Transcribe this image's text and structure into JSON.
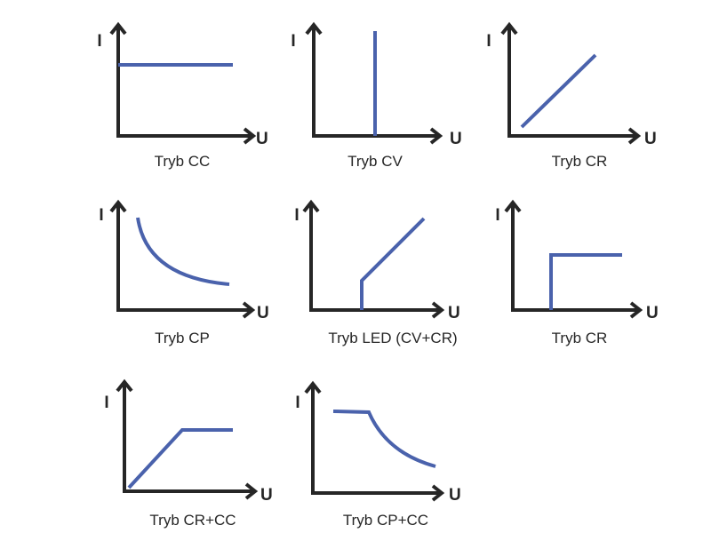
{
  "axis_labels": {
    "y": "I",
    "x": "U"
  },
  "colors": {
    "axis": "#262626",
    "curve": "#4a62ac",
    "background": "#ffffff"
  },
  "panels": [
    {
      "label": "Tryb CC",
      "shape": "horizontal-line"
    },
    {
      "label": "Tryb CV",
      "shape": "vertical-line"
    },
    {
      "label": "Tryb CR",
      "shape": "rising-line"
    },
    {
      "label": "Tryb CP",
      "shape": "hyperbola"
    },
    {
      "label": "Tryb LED (CV+CR)",
      "shape": "step-then-rising-line"
    },
    {
      "label": "Tryb CR",
      "shape": "step-then-flat"
    },
    {
      "label": "Tryb CR+CC",
      "shape": "rising-then-flat"
    },
    {
      "label": "Tryb CP+CC",
      "shape": "flat-then-hyperbola"
    }
  ]
}
